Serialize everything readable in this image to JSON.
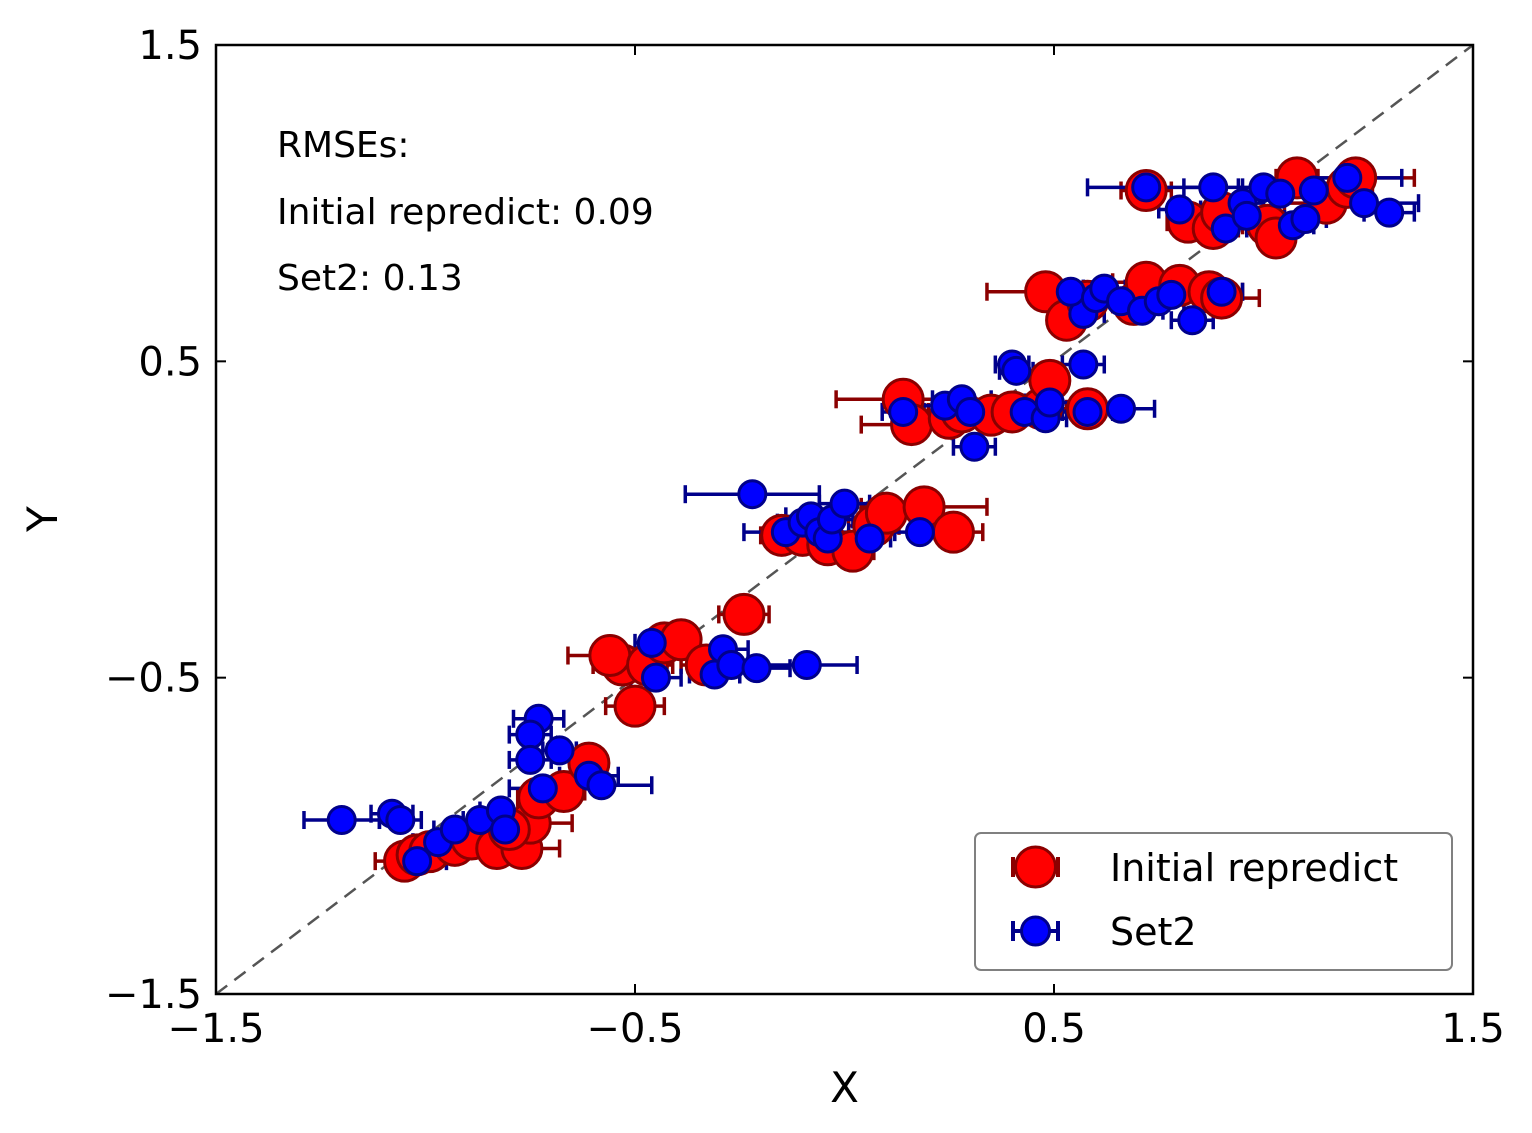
{
  "chart_data": {
    "type": "scatter",
    "xlabel": "X",
    "ylabel": "Y",
    "xlim": [
      -1.5,
      1.5
    ],
    "ylim": [
      -1.5,
      1.5
    ],
    "xticks": [
      "−1.5",
      "−0.5",
      "0.5",
      "1.5"
    ],
    "yticks": [
      "−1.5",
      "−0.5",
      "0.5",
      "1.5"
    ],
    "xtick_values": [
      -1.5,
      -0.5,
      0.5,
      1.5
    ],
    "ytick_values": [
      -1.5,
      -0.5,
      0.5,
      1.5
    ],
    "grid": false,
    "legend_placement": "lower-right",
    "annotations": [
      "RMSEs:",
      "Initial repredict: 0.09",
      "Set2: 0.13"
    ],
    "reference_line": "y = x",
    "series": [
      {
        "name": "Initial repredict",
        "color": "#ff0000",
        "edge_color": "#8b0000",
        "errorbar_color": "#8b0000",
        "points": [
          [
            -1.05,
            -1.08,
            0.07
          ],
          [
            -1.02,
            -1.06,
            0.05
          ],
          [
            -0.99,
            -1.05,
            0.04
          ],
          [
            -0.93,
            -1.03,
            0.04
          ],
          [
            -0.89,
            -1.01,
            0.05
          ],
          [
            -0.83,
            -1.04,
            0.05
          ],
          [
            -0.77,
            -1.04,
            0.09
          ],
          [
            -0.75,
            -0.96,
            0.1
          ],
          [
            -0.8,
            -0.98,
            0.05
          ],
          [
            -0.73,
            -0.88,
            0.05
          ],
          [
            -0.67,
            -0.86,
            0.05
          ],
          [
            -0.61,
            -0.77,
            0.04
          ],
          [
            -0.5,
            -0.59,
            0.07
          ],
          [
            -0.53,
            -0.46,
            0.07
          ],
          [
            -0.56,
            -0.43,
            0.1
          ],
          [
            -0.47,
            -0.46,
            0.06
          ],
          [
            -0.43,
            -0.39,
            0.04
          ],
          [
            -0.39,
            -0.38,
            0.04
          ],
          [
            -0.33,
            -0.46,
            0.06
          ],
          [
            -0.24,
            -0.3,
            0.06
          ],
          [
            -0.15,
            -0.05,
            0.05
          ],
          [
            -0.1,
            -0.05,
            0.04
          ],
          [
            -0.04,
            -0.08,
            0.06
          ],
          [
            0.02,
            -0.1,
            0.05
          ],
          [
            0.07,
            -0.02,
            0.06
          ],
          [
            0.1,
            0.02,
            0.04
          ],
          [
            0.19,
            0.04,
            0.15
          ],
          [
            0.26,
            -0.04,
            0.07
          ],
          [
            0.14,
            0.38,
            0.16
          ],
          [
            0.16,
            0.3,
            0.12
          ],
          [
            0.25,
            0.32,
            0.06
          ],
          [
            0.28,
            0.34,
            0.08
          ],
          [
            0.35,
            0.33,
            0.05
          ],
          [
            0.4,
            0.34,
            0.08
          ],
          [
            0.47,
            0.35,
            0.06
          ],
          [
            0.49,
            0.44,
            0.04
          ],
          [
            0.58,
            0.35,
            0.07
          ],
          [
            0.48,
            0.72,
            0.14
          ],
          [
            0.53,
            0.63,
            0.04
          ],
          [
            0.58,
            0.69,
            0.06
          ],
          [
            0.69,
            0.68,
            0.05
          ],
          [
            0.72,
            0.75,
            0.08
          ],
          [
            0.8,
            0.74,
            0.06
          ],
          [
            0.87,
            0.72,
            0.08
          ],
          [
            0.9,
            0.7,
            0.09
          ],
          [
            0.82,
            0.94,
            0.05
          ],
          [
            0.88,
            0.92,
            0.06
          ],
          [
            0.72,
            1.04,
            0.06
          ],
          [
            0.9,
            0.97,
            0.05
          ],
          [
            1.01,
            0.93,
            0.06
          ],
          [
            1.03,
            0.89,
            0.04
          ],
          [
            1.08,
            1.08,
            0.05
          ],
          [
            1.15,
            1.0,
            0.1
          ],
          [
            1.2,
            1.05,
            0.06
          ],
          [
            1.22,
            1.08,
            0.14
          ]
        ]
      },
      {
        "name": "Set2",
        "color": "#0000ff",
        "edge_color": "#00008b",
        "errorbar_color": "#00008b",
        "points": [
          [
            -1.2,
            -0.95,
            0.09
          ],
          [
            -1.08,
            -0.93,
            0.05
          ],
          [
            -1.06,
            -0.95,
            0.05
          ],
          [
            -1.02,
            -1.08,
            0.07
          ],
          [
            -0.97,
            -1.02,
            0.06
          ],
          [
            -0.93,
            -0.98,
            0.05
          ],
          [
            -0.87,
            -0.95,
            0.04
          ],
          [
            -0.82,
            -0.92,
            0.05
          ],
          [
            -0.81,
            -0.98,
            0.04
          ],
          [
            -0.72,
            -0.85,
            0.08
          ],
          [
            -0.73,
            -0.63,
            0.06
          ],
          [
            -0.75,
            -0.68,
            0.05
          ],
          [
            -0.75,
            -0.76,
            0.05
          ],
          [
            -0.68,
            -0.73,
            0.04
          ],
          [
            -0.61,
            -0.81,
            0.07
          ],
          [
            -0.58,
            -0.84,
            0.12
          ],
          [
            -0.46,
            -0.39,
            0.04
          ],
          [
            -0.45,
            -0.5,
            0.06
          ],
          [
            -0.31,
            -0.49,
            0.06
          ],
          [
            -0.29,
            -0.41,
            0.06
          ],
          [
            -0.27,
            -0.46,
            0.04
          ],
          [
            -0.21,
            -0.47,
            0.08
          ],
          [
            -0.09,
            -0.46,
            0.12
          ],
          [
            -0.22,
            0.08,
            0.16
          ],
          [
            -0.14,
            -0.04,
            0.1
          ],
          [
            -0.1,
            -0.01,
            0.06
          ],
          [
            -0.08,
            0.01,
            0.06
          ],
          [
            -0.06,
            -0.04,
            0.07
          ],
          [
            -0.04,
            -0.06,
            0.05
          ],
          [
            -0.03,
            0.0,
            0.05
          ],
          [
            0.0,
            0.05,
            0.06
          ],
          [
            0.06,
            -0.06,
            0.05
          ],
          [
            0.18,
            -0.04,
            0.06
          ],
          [
            0.14,
            0.34,
            0.05
          ],
          [
            0.24,
            0.36,
            0.06
          ],
          [
            0.28,
            0.38,
            0.07
          ],
          [
            0.31,
            0.23,
            0.05
          ],
          [
            0.3,
            0.34,
            0.06
          ],
          [
            0.4,
            0.49,
            0.04
          ],
          [
            0.41,
            0.47,
            0.04
          ],
          [
            0.43,
            0.34,
            0.05
          ],
          [
            0.48,
            0.32,
            0.05
          ],
          [
            0.49,
            0.37,
            0.06
          ],
          [
            0.57,
            0.49,
            0.05
          ],
          [
            0.58,
            0.34,
            0.06
          ],
          [
            0.66,
            0.35,
            0.08
          ],
          [
            0.57,
            0.65,
            0.05
          ],
          [
            0.54,
            0.72,
            0.05
          ],
          [
            0.6,
            0.7,
            0.06
          ],
          [
            0.62,
            0.73,
            0.05
          ],
          [
            0.66,
            0.69,
            0.05
          ],
          [
            0.71,
            0.66,
            0.05
          ],
          [
            0.75,
            0.69,
            0.06
          ],
          [
            0.78,
            0.71,
            0.06
          ],
          [
            0.83,
            0.63,
            0.05
          ],
          [
            0.9,
            0.72,
            0.05
          ],
          [
            0.72,
            1.05,
            0.14
          ],
          [
            0.8,
            0.98,
            0.05
          ],
          [
            0.88,
            1.05,
            0.07
          ],
          [
            0.91,
            0.92,
            0.05
          ],
          [
            0.95,
            1.0,
            0.05
          ],
          [
            0.96,
            0.96,
            0.06
          ],
          [
            1.0,
            1.05,
            0.06
          ],
          [
            1.04,
            1.03,
            0.06
          ],
          [
            1.07,
            0.93,
            0.05
          ],
          [
            1.1,
            0.95,
            0.05
          ],
          [
            1.12,
            1.04,
            0.06
          ],
          [
            1.2,
            1.08,
            0.13
          ],
          [
            1.24,
            1.0,
            0.13
          ],
          [
            1.3,
            0.97,
            0.06
          ]
        ]
      }
    ]
  }
}
